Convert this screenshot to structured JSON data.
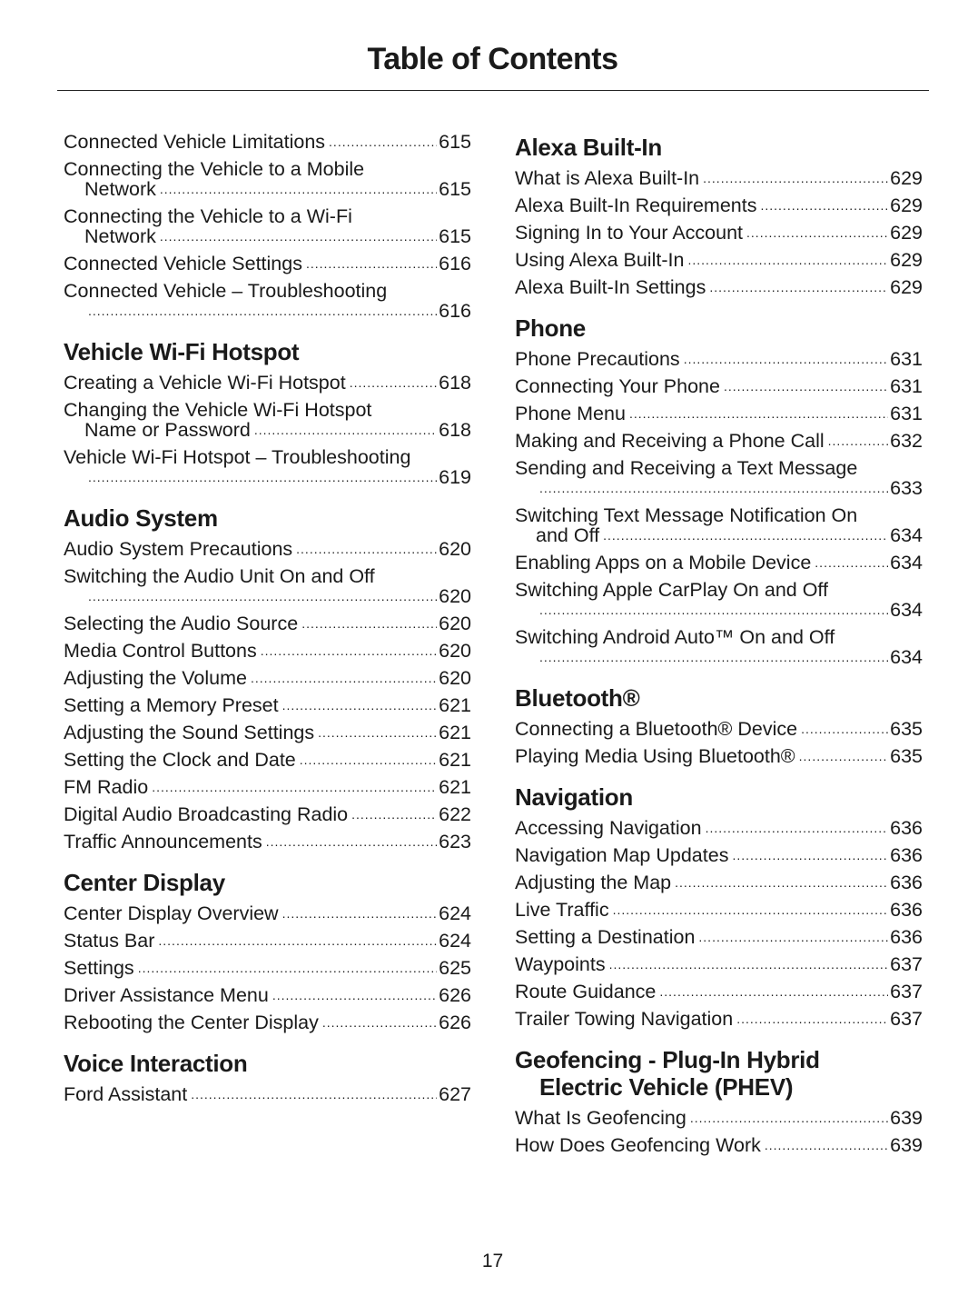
{
  "title": "Table of Contents",
  "page_number": "17",
  "left": [
    {
      "heading": [],
      "entries": [
        {
          "lines": [
            "Connected Vehicle Limitations"
          ],
          "page": "615"
        },
        {
          "lines": [
            "Connecting the Vehicle to a Mobile",
            "Network"
          ],
          "page": "615"
        },
        {
          "lines": [
            "Connecting the Vehicle to a Wi-Fi",
            "Network"
          ],
          "page": "615"
        },
        {
          "lines": [
            "Connected Vehicle Settings"
          ],
          "page": "616"
        },
        {
          "lines": [
            "Connected Vehicle – Troubleshooting",
            ""
          ],
          "page": "616"
        }
      ]
    },
    {
      "heading": [
        "Vehicle Wi-Fi Hotspot"
      ],
      "entries": [
        {
          "lines": [
            "Creating a Vehicle Wi-Fi Hotspot"
          ],
          "page": "618"
        },
        {
          "lines": [
            "Changing the Vehicle Wi-Fi Hotspot",
            "Name or Password"
          ],
          "page": "618"
        },
        {
          "lines": [
            "Vehicle Wi-Fi Hotspot – Troubleshooting",
            ""
          ],
          "page": "619"
        }
      ]
    },
    {
      "heading": [
        "Audio System"
      ],
      "entries": [
        {
          "lines": [
            "Audio System Precautions"
          ],
          "page": "620"
        },
        {
          "lines": [
            "Switching the Audio Unit On and Off",
            ""
          ],
          "page": "620"
        },
        {
          "lines": [
            "Selecting the Audio Source"
          ],
          "page": "620"
        },
        {
          "lines": [
            "Media Control Buttons"
          ],
          "page": "620"
        },
        {
          "lines": [
            "Adjusting the Volume"
          ],
          "page": "620"
        },
        {
          "lines": [
            "Setting a Memory Preset"
          ],
          "page": "621"
        },
        {
          "lines": [
            "Adjusting the Sound Settings"
          ],
          "page": "621"
        },
        {
          "lines": [
            "Setting the Clock and Date"
          ],
          "page": "621"
        },
        {
          "lines": [
            "FM Radio"
          ],
          "page": "621"
        },
        {
          "lines": [
            "Digital Audio Broadcasting Radio"
          ],
          "page": "622"
        },
        {
          "lines": [
            "Traffic Announcements"
          ],
          "page": "623"
        }
      ]
    },
    {
      "heading": [
        "Center Display"
      ],
      "entries": [
        {
          "lines": [
            "Center Display Overview"
          ],
          "page": "624"
        },
        {
          "lines": [
            "Status Bar"
          ],
          "page": "624"
        },
        {
          "lines": [
            "Settings"
          ],
          "page": "625"
        },
        {
          "lines": [
            "Driver Assistance Menu"
          ],
          "page": "626"
        },
        {
          "lines": [
            "Rebooting the Center Display"
          ],
          "page": "626"
        }
      ]
    },
    {
      "heading": [
        "Voice Interaction"
      ],
      "entries": [
        {
          "lines": [
            "Ford Assistant"
          ],
          "page": "627"
        }
      ]
    }
  ],
  "right": [
    {
      "heading": [
        "Alexa Built-In"
      ],
      "entries": [
        {
          "lines": [
            "What is Alexa Built-In"
          ],
          "page": "629"
        },
        {
          "lines": [
            "Alexa Built-In Requirements"
          ],
          "page": "629"
        },
        {
          "lines": [
            "Signing In to Your Account"
          ],
          "page": "629"
        },
        {
          "lines": [
            "Using Alexa Built-In"
          ],
          "page": "629"
        },
        {
          "lines": [
            "Alexa Built-In Settings"
          ],
          "page": "629"
        }
      ]
    },
    {
      "heading": [
        "Phone"
      ],
      "entries": [
        {
          "lines": [
            "Phone Precautions"
          ],
          "page": "631"
        },
        {
          "lines": [
            "Connecting Your Phone"
          ],
          "page": "631"
        },
        {
          "lines": [
            "Phone Menu"
          ],
          "page": "631"
        },
        {
          "lines": [
            "Making and Receiving a Phone Call"
          ],
          "page": "632"
        },
        {
          "lines": [
            "Sending and Receiving a Text Message",
            ""
          ],
          "page": "633"
        },
        {
          "lines": [
            "Switching Text Message Notification On",
            "and Off"
          ],
          "page": "634"
        },
        {
          "lines": [
            "Enabling Apps on a Mobile Device"
          ],
          "page": "634"
        },
        {
          "lines": [
            "Switching Apple CarPlay On and Off",
            ""
          ],
          "page": "634"
        },
        {
          "lines": [
            "Switching Android Auto™ On and Off",
            ""
          ],
          "page": "634"
        }
      ]
    },
    {
      "heading": [
        "Bluetooth®"
      ],
      "entries": [
        {
          "lines": [
            "Connecting a Bluetooth® Device"
          ],
          "page": "635"
        },
        {
          "lines": [
            "Playing Media Using Bluetooth®"
          ],
          "page": "635"
        }
      ]
    },
    {
      "heading": [
        "Navigation"
      ],
      "entries": [
        {
          "lines": [
            "Accessing Navigation"
          ],
          "page": "636"
        },
        {
          "lines": [
            "Navigation Map Updates"
          ],
          "page": "636"
        },
        {
          "lines": [
            "Adjusting the Map"
          ],
          "page": "636"
        },
        {
          "lines": [
            "Live Traffic"
          ],
          "page": "636"
        },
        {
          "lines": [
            "Setting a Destination"
          ],
          "page": "636"
        },
        {
          "lines": [
            "Waypoints"
          ],
          "page": "637"
        },
        {
          "lines": [
            "Route Guidance"
          ],
          "page": "637"
        },
        {
          "lines": [
            "Trailer Towing Navigation"
          ],
          "page": "637"
        }
      ]
    },
    {
      "heading": [
        "Geofencing - Plug-In Hybrid",
        "Electric Vehicle (PHEV)"
      ],
      "entries": [
        {
          "lines": [
            "What Is Geofencing"
          ],
          "page": "639"
        },
        {
          "lines": [
            "How Does Geofencing Work"
          ],
          "page": "639"
        }
      ]
    }
  ]
}
